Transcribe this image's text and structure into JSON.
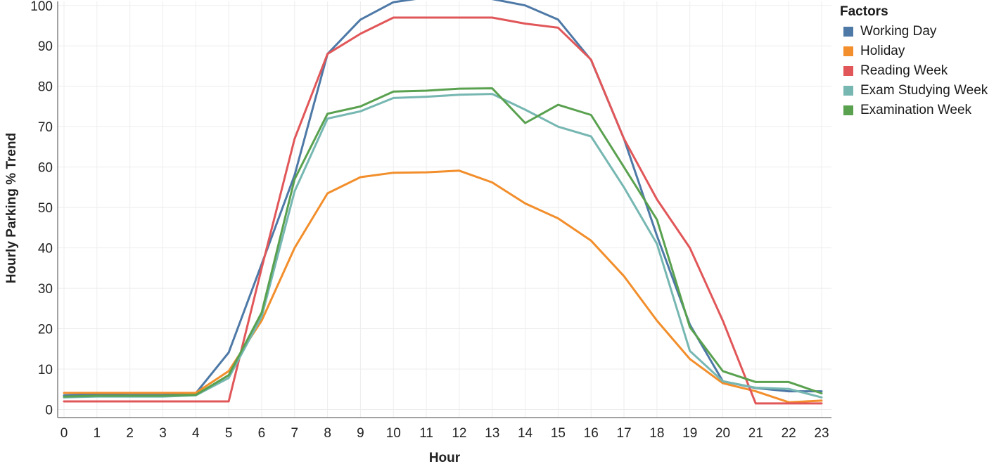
{
  "chart_data": {
    "type": "line",
    "xlabel": "Hour",
    "ylabel": "Hourly Parking % Trend",
    "x": [
      0,
      1,
      2,
      3,
      4,
      5,
      6,
      7,
      8,
      9,
      10,
      11,
      12,
      13,
      14,
      15,
      16,
      17,
      18,
      19,
      20,
      21,
      22,
      23
    ],
    "ylim": [
      -2,
      101
    ],
    "yticks": [
      0,
      10,
      20,
      30,
      40,
      50,
      60,
      70,
      80,
      90,
      100
    ],
    "grid": true,
    "legend_title": "Factors",
    "legend_position": "top-right",
    "series": [
      {
        "name": "Working Day",
        "color": "#4e79a7",
        "values": [
          3.5,
          3.8,
          3.6,
          3.6,
          4.0,
          14.1,
          36.0,
          58.0,
          88.0,
          96.5,
          100.8,
          102.0,
          102.0,
          101.6,
          100.0,
          96.5,
          86.5,
          67.0,
          43.0,
          21.0,
          7.0,
          5.3,
          4.5,
          4.5
        ]
      },
      {
        "name": "Holiday",
        "color": "#f28e2b",
        "values": [
          4.1,
          4.1,
          4.1,
          4.1,
          4.1,
          9.5,
          22.0,
          40.0,
          53.5,
          57.5,
          58.6,
          58.7,
          59.1,
          56.2,
          51.0,
          47.3,
          41.8,
          33.0,
          22.0,
          12.5,
          6.5,
          4.5,
          1.8,
          2.2
        ]
      },
      {
        "name": "Reading Week",
        "color": "#e15759",
        "values": [
          2.0,
          2.0,
          2.0,
          2.0,
          2.0,
          2.0,
          35.0,
          67.0,
          88.0,
          93.0,
          97.0,
          97.0,
          97.0,
          97.0,
          95.5,
          94.5,
          86.6,
          67.0,
          52.0,
          40.0,
          22.0,
          1.5,
          1.5,
          1.5
        ]
      },
      {
        "name": "Exam Studying Week",
        "color": "#76b7b2",
        "values": [
          3.0,
          3.2,
          3.2,
          3.2,
          3.5,
          7.8,
          23.0,
          54.0,
          72.0,
          73.8,
          77.1,
          77.4,
          77.9,
          78.1,
          74.2,
          70.0,
          67.6,
          55.0,
          41.0,
          14.5,
          7.0,
          5.4,
          5.1,
          3.0
        ]
      },
      {
        "name": "Examination Week",
        "color": "#59a14f",
        "values": [
          3.2,
          3.4,
          3.4,
          3.4,
          3.6,
          8.5,
          24.0,
          57.0,
          73.2,
          75.0,
          78.7,
          78.9,
          79.4,
          79.5,
          70.9,
          75.4,
          72.9,
          60.0,
          47.0,
          20.4,
          9.5,
          6.8,
          6.8,
          4.0
        ]
      }
    ]
  }
}
